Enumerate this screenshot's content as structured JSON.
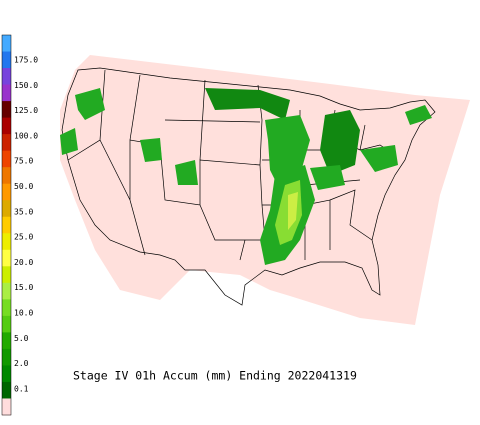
{
  "title": "Stage IV 01h Accum (mm) Ending 2022041319",
  "legend": {
    "labels": [
      "175.0",
      "150.0",
      "125.0",
      "100.0",
      "75.0",
      "50.0",
      "35.0",
      "25.0",
      "20.0",
      "15.0",
      "10.0",
      "5.0",
      "2.0",
      "0.1"
    ],
    "colors": [
      "#44aaff",
      "#2277ee",
      "#7744dd",
      "#9933cc",
      "#660000",
      "#aa0000",
      "#cc2200",
      "#ee4400",
      "#ee7700",
      "#ff9900",
      "#ddaa00",
      "#ffcc00",
      "#eeee00",
      "#ffff44",
      "#ccee00",
      "#aaee44",
      "#77dd22",
      "#55cc11",
      "#22aa00",
      "#119900",
      "#008800",
      "#006600",
      "#ffdddd"
    ]
  }
}
